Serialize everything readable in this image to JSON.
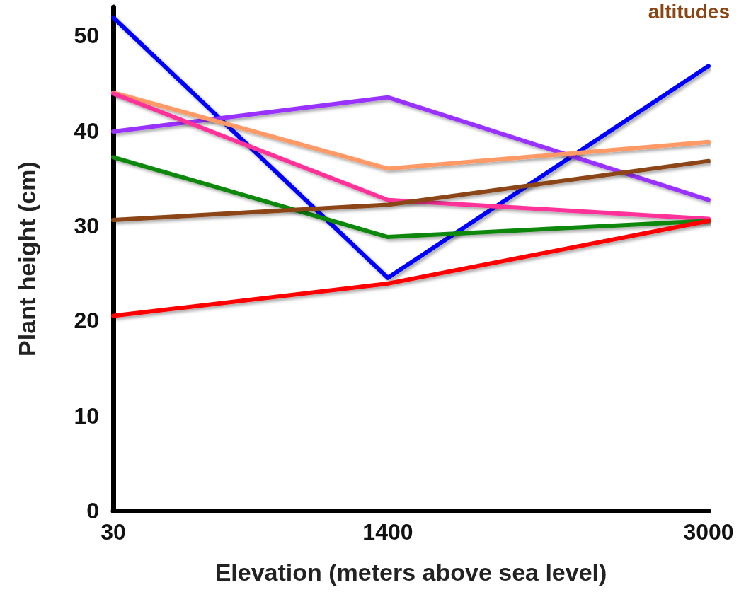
{
  "chart_data": {
    "type": "line",
    "xlabel": "Elevation (meters above sea level)",
    "ylabel": "Plant height (cm)",
    "annotations": [
      "altitudes"
    ],
    "x": [
      30,
      1400,
      3000
    ],
    "xlim": [
      30,
      3000
    ],
    "xticks": [
      30,
      1400,
      3000
    ],
    "ylim": [
      0,
      53
    ],
    "yticks": [
      0,
      10,
      20,
      30,
      40,
      50
    ],
    "grid": false,
    "marker": "none",
    "line_style": "solid",
    "series": [
      {
        "color": "#0000ff",
        "values": [
          51.9,
          24.5,
          46.8
        ]
      },
      {
        "color": "#9933ff",
        "values": [
          39.9,
          43.5,
          32.7
        ]
      },
      {
        "color": "#ff9966",
        "values": [
          44,
          36,
          38.8
        ]
      },
      {
        "color": "#ff3399",
        "values": [
          43.9,
          32.7,
          30.7
        ]
      },
      {
        "color": "#118811",
        "values": [
          37.2,
          28.8,
          30.5
        ]
      },
      {
        "color": "#8b4513",
        "values": [
          30.6,
          32.2,
          36.8
        ]
      },
      {
        "color": "#ff0000",
        "values": [
          20.5,
          23.9,
          30.5
        ]
      }
    ]
  }
}
